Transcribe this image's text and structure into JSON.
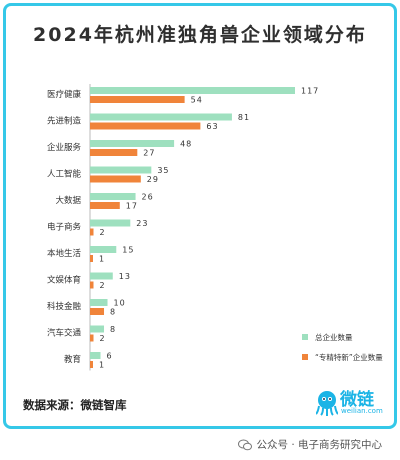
{
  "title": "2024年杭州准独角兽企业领域分布",
  "source": "数据来源：微链智库",
  "logo": {
    "name": "微链",
    "domain": "weilian.com"
  },
  "watermark": "公众号 · 电子商务研究中心",
  "colors": {
    "total": "#9ee0bf",
    "special": "#f0843a",
    "frame": "#35c8e8",
    "brand": "#1bb4e6"
  },
  "chart_data": {
    "type": "bar",
    "orientation": "horizontal",
    "categories": [
      "医疗健康",
      "先进制造",
      "企业服务",
      "人工智能",
      "大数据",
      "电子商务",
      "本地生活",
      "文娱体育",
      "科技金融",
      "汽车交通",
      "教育"
    ],
    "series": [
      {
        "name": "总企业数量",
        "values": [
          117,
          81,
          48,
          35,
          26,
          23,
          15,
          13,
          10,
          8,
          6
        ]
      },
      {
        "name": "“专精特新”企业数量",
        "values": [
          54,
          63,
          27,
          29,
          17,
          2,
          1,
          2,
          8,
          2,
          1
        ]
      }
    ],
    "data_labels": true,
    "legend_position": "bottom-right",
    "grid": false
  }
}
